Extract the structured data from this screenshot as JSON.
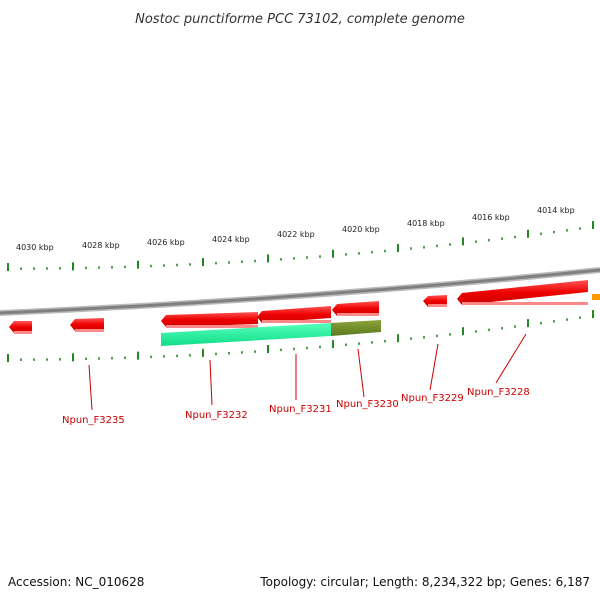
{
  "title": "Nostoc punctiforme PCC 73102, complete genome",
  "footer": {
    "accession": "Accession: NC_010628",
    "summary": "Topology: circular; Length: 8,234,322 bp; Genes: 6,187"
  },
  "colors": {
    "backbone": "#8a8a8a",
    "gene_red": "#ee1111",
    "gene_red_light": "#ff7777",
    "feature_green": "#22ee99",
    "feature_olive": "#6b8a2a",
    "tick_green": "#228822",
    "label_red": "#cc0000",
    "feature_orange": "#ff9900"
  },
  "scale_labels": [
    "4030 kbp",
    "4028 kbp",
    "4026 kbp",
    "4024 kbp",
    "4022 kbp",
    "4020 kbp",
    "4018 kbp",
    "4016 kbp",
    "4014 kbp"
  ],
  "gene_labels": [
    "Npun_F3235",
    "Npun_F3232",
    "Npun_F3231",
    "Npun_F3230",
    "Npun_F3229",
    "Npun_F3228"
  ]
}
